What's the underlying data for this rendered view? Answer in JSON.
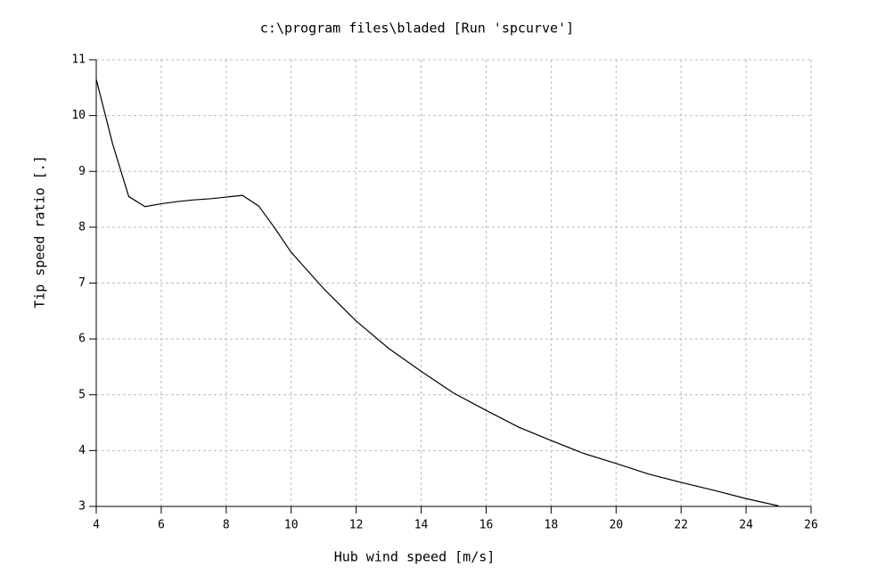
{
  "chart_data": {
    "type": "line",
    "title": "c:\\program files\\bladed [Run 'spcurve']",
    "x_label": "Hub wind speed [m/s]",
    "y_label": "Tip speed ratio  [.]",
    "x": [
      4,
      4.5,
      5,
      5.5,
      6,
      6.5,
      7,
      7.5,
      8,
      8.5,
      9,
      9.5,
      10,
      11,
      12,
      13,
      14,
      15,
      16,
      17,
      18,
      19,
      20,
      21,
      22,
      23,
      24,
      25
    ],
    "series": [
      {
        "name": "Tip speed ratio",
        "color": "#000000",
        "values": [
          10.65,
          9.5,
          8.55,
          8.37,
          8.42,
          8.46,
          8.49,
          8.51,
          8.54,
          8.57,
          8.38,
          7.98,
          7.55,
          6.9,
          6.32,
          5.83,
          5.42,
          5.03,
          4.72,
          4.42,
          4.18,
          3.95,
          3.77,
          3.58,
          3.43,
          3.29,
          3.14,
          3.01
        ]
      }
    ],
    "xlim": [
      4,
      26
    ],
    "xticks": [
      4,
      6,
      8,
      10,
      12,
      14,
      16,
      18,
      20,
      22,
      24,
      26
    ],
    "ylim": [
      3,
      11
    ],
    "yticks": [
      3,
      4,
      5,
      6,
      7,
      8,
      9,
      10,
      11
    ],
    "grid": true
  }
}
